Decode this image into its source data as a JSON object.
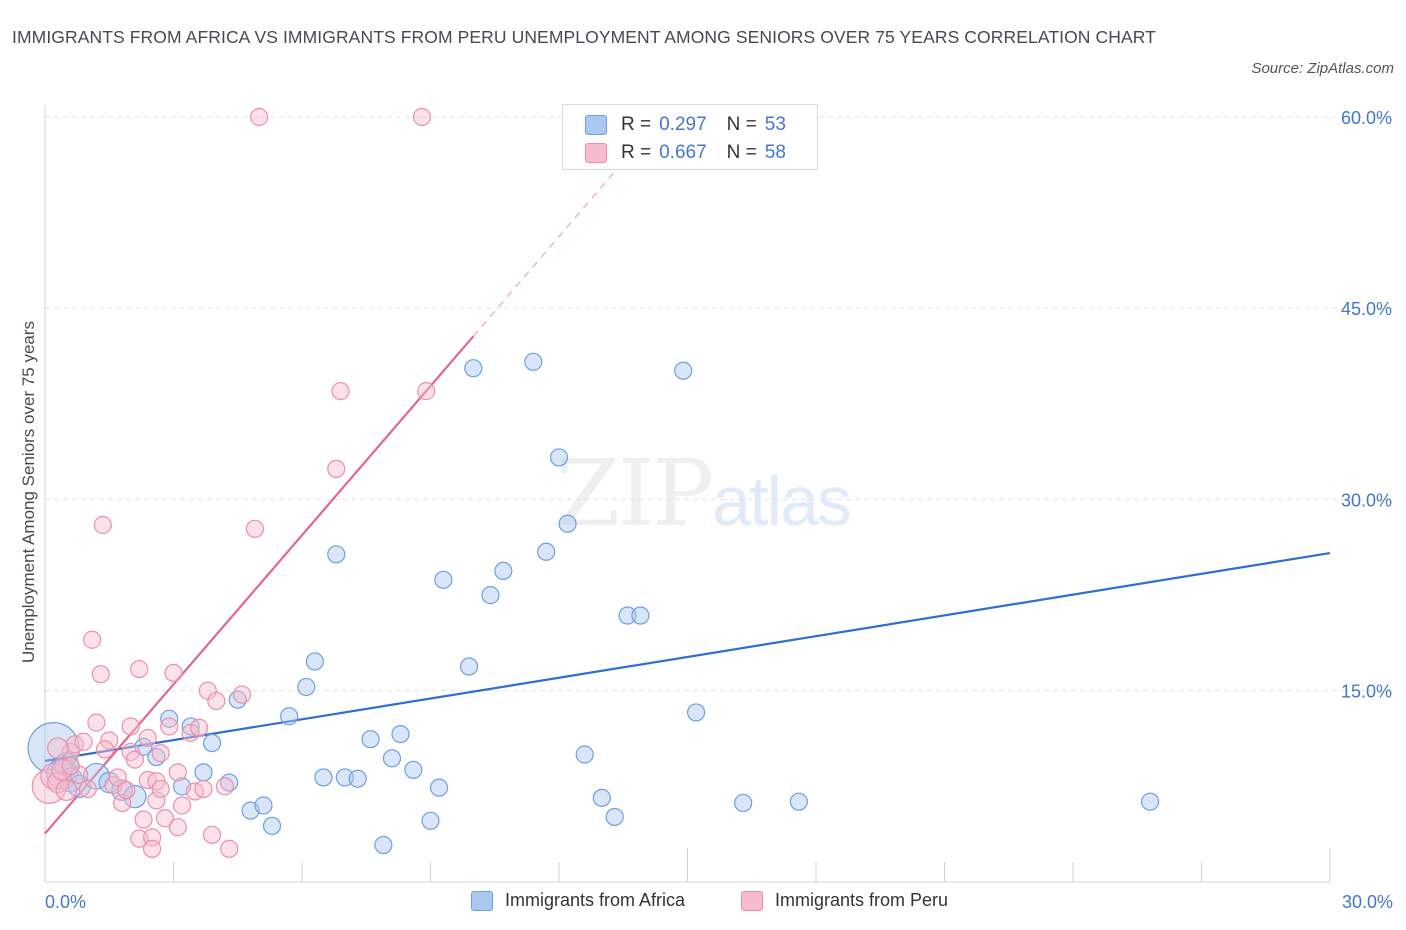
{
  "title": "IMMIGRANTS FROM AFRICA VS IMMIGRANTS FROM PERU UNEMPLOYMENT AMONG SENIORS OVER 75 YEARS CORRELATION CHART",
  "source": "Source: ZipAtlas.com",
  "watermark": {
    "zip": "ZIP",
    "atlas": "atlas"
  },
  "legend": {
    "africa": {
      "r_label": "R =",
      "r_value": "0.297",
      "n_label": "N =",
      "n_value": "53"
    },
    "peru": {
      "r_label": "R =",
      "r_value": "0.667",
      "n_label": "N =",
      "n_value": "58"
    }
  },
  "colors": {
    "africa_fill": "#aac8f0",
    "africa_stroke": "#6e9fe0",
    "africa_line": "#2f6fd0",
    "peru_fill": "#f6bccd",
    "peru_stroke": "#ec8fab",
    "peru_line": "#e2668e",
    "grid": "#e2e4e8",
    "tick_label": "#4477cc"
  },
  "chart_data": {
    "type": "scatter",
    "title": "IMMIGRANTS FROM AFRICA VS IMMIGRANTS FROM PERU UNEMPLOYMENT AMONG SENIORS OVER 75 YEARS CORRELATION CHART",
    "xlabel": "",
    "ylabel": "Unemployment Among Seniors over 75 years",
    "xlim": [
      0,
      30
    ],
    "ylim": [
      0,
      60
    ],
    "x_tick_labels": [
      "0.0%",
      "30.0%"
    ],
    "y_ticks": [
      15,
      30,
      45,
      60
    ],
    "y_tick_labels": [
      "15.0%",
      "30.0%",
      "45.0%",
      "60.0%"
    ],
    "grid": true,
    "legend_position": "bottom",
    "series": [
      {
        "name": "Immigrants from Africa",
        "r": 0.297,
        "n": 53,
        "trend": {
          "x": [
            0,
            30
          ],
          "y": [
            9.5,
            25.8
          ]
        },
        "points": [
          [
            0.2,
            10.5,
            3.0
          ],
          [
            0.4,
            8.5,
            1.8
          ],
          [
            0.5,
            9.2,
            1.4
          ],
          [
            0.6,
            8.0,
            1.4
          ],
          [
            0.8,
            7.5,
            1.3
          ],
          [
            1.2,
            8.3,
            1.5
          ],
          [
            1.5,
            7.8,
            1.2
          ],
          [
            1.8,
            7.2,
            1.2
          ],
          [
            2.1,
            6.7,
            1.3
          ],
          [
            2.3,
            10.6,
            1.0
          ],
          [
            2.6,
            9.8,
            1.0
          ],
          [
            2.9,
            12.8,
            1.0
          ],
          [
            3.2,
            7.5,
            1.0
          ],
          [
            3.4,
            12.2,
            1.0
          ],
          [
            3.7,
            8.6,
            1.0
          ],
          [
            3.9,
            10.9,
            1.0
          ],
          [
            4.3,
            7.8,
            1.0
          ],
          [
            4.5,
            14.3,
            1.0
          ],
          [
            4.8,
            5.6,
            1.0
          ],
          [
            5.1,
            6.0,
            1.0
          ],
          [
            5.3,
            4.4,
            1.0
          ],
          [
            5.7,
            13.0,
            1.0
          ],
          [
            6.1,
            15.3,
            1.0
          ],
          [
            6.3,
            17.3,
            1.0
          ],
          [
            6.5,
            8.2,
            1.0
          ],
          [
            6.8,
            25.7,
            1.0
          ],
          [
            7.0,
            8.2,
            1.0
          ],
          [
            7.3,
            8.1,
            1.0
          ],
          [
            7.6,
            11.2,
            1.0
          ],
          [
            7.9,
            2.9,
            1.0
          ],
          [
            8.1,
            9.7,
            1.0
          ],
          [
            8.3,
            11.6,
            1.0
          ],
          [
            8.6,
            8.8,
            1.0
          ],
          [
            9.0,
            4.8,
            1.0
          ],
          [
            9.2,
            7.4,
            1.0
          ],
          [
            9.3,
            23.7,
            1.0
          ],
          [
            9.9,
            16.9,
            1.0
          ],
          [
            10.0,
            40.3,
            1.0
          ],
          [
            10.4,
            22.5,
            1.0
          ],
          [
            10.7,
            24.4,
            1.0
          ],
          [
            11.4,
            40.8,
            1.0
          ],
          [
            11.7,
            25.9,
            1.0
          ],
          [
            12.0,
            33.3,
            1.0
          ],
          [
            12.2,
            28.1,
            1.0
          ],
          [
            12.6,
            10.0,
            1.0
          ],
          [
            13.0,
            6.6,
            1.0
          ],
          [
            13.3,
            5.1,
            1.0
          ],
          [
            13.6,
            20.9,
            1.0
          ],
          [
            13.9,
            20.9,
            1.0
          ],
          [
            14.9,
            40.1,
            1.0
          ],
          [
            15.2,
            13.3,
            1.0
          ],
          [
            16.3,
            6.2,
            1.0
          ],
          [
            17.6,
            6.3,
            1.0
          ],
          [
            25.8,
            6.3,
            1.0
          ]
        ]
      },
      {
        "name": "Immigrants from Peru",
        "r": 0.667,
        "n": 58,
        "trend": {
          "x": [
            0,
            10
          ],
          "y": [
            3.8,
            42.8
          ]
        },
        "trend_dashed_extension": {
          "x": [
            10,
            13.5
          ],
          "y": [
            42.8,
            56.5
          ]
        },
        "points": [
          [
            0.1,
            7.5,
            2.0
          ],
          [
            0.2,
            8.3,
            1.5
          ],
          [
            0.3,
            7.8,
            1.2
          ],
          [
            0.4,
            8.8,
            1.2
          ],
          [
            0.5,
            7.2,
            1.2
          ],
          [
            0.6,
            10.2,
            1.0
          ],
          [
            0.7,
            10.8,
            1.0
          ],
          [
            0.8,
            8.4,
            1.0
          ],
          [
            0.9,
            11.0,
            1.0
          ],
          [
            1.0,
            7.3,
            1.0
          ],
          [
            1.1,
            19.0,
            1.0
          ],
          [
            1.2,
            12.5,
            1.0
          ],
          [
            1.3,
            16.3,
            1.0
          ],
          [
            1.35,
            28.0,
            1.0
          ],
          [
            1.5,
            11.1,
            1.0
          ],
          [
            1.6,
            7.6,
            1.0
          ],
          [
            1.7,
            8.2,
            1.0
          ],
          [
            1.8,
            6.2,
            1.0
          ],
          [
            1.9,
            7.2,
            1.0
          ],
          [
            2.0,
            10.2,
            1.0
          ],
          [
            2.1,
            9.6,
            1.0
          ],
          [
            2.0,
            12.2,
            1.0
          ],
          [
            2.2,
            3.4,
            1.0
          ],
          [
            2.3,
            4.9,
            1.0
          ],
          [
            2.2,
            16.7,
            1.0
          ],
          [
            2.4,
            8.0,
            1.0
          ],
          [
            2.4,
            11.3,
            1.0
          ],
          [
            2.5,
            3.5,
            1.0
          ],
          [
            2.5,
            2.6,
            1.0
          ],
          [
            2.6,
            7.9,
            1.0
          ],
          [
            2.6,
            6.4,
            1.0
          ],
          [
            2.7,
            7.3,
            1.0
          ],
          [
            2.7,
            10.1,
            1.0
          ],
          [
            2.8,
            5.0,
            1.0
          ],
          [
            2.9,
            12.2,
            1.0
          ],
          [
            3.1,
            4.3,
            1.0
          ],
          [
            3.0,
            16.4,
            1.0
          ],
          [
            3.1,
            8.6,
            1.0
          ],
          [
            3.2,
            6.0,
            1.0
          ],
          [
            3.4,
            11.7,
            1.0
          ],
          [
            3.5,
            7.1,
            1.0
          ],
          [
            3.6,
            12.1,
            1.0
          ],
          [
            3.7,
            7.3,
            1.0
          ],
          [
            3.8,
            15.0,
            1.0
          ],
          [
            3.9,
            3.7,
            1.0
          ],
          [
            4.0,
            14.2,
            1.0
          ],
          [
            4.2,
            7.5,
            1.0
          ],
          [
            4.3,
            2.6,
            1.0
          ],
          [
            4.6,
            14.7,
            1.0
          ],
          [
            4.9,
            27.7,
            1.0
          ],
          [
            5.0,
            60.0,
            1.0
          ],
          [
            6.8,
            32.4,
            1.0
          ],
          [
            6.9,
            38.5,
            1.0
          ],
          [
            8.8,
            60.0,
            1.0
          ],
          [
            8.9,
            38.5,
            1.0
          ],
          [
            0.3,
            10.5,
            1.2
          ],
          [
            0.6,
            9.1,
            1.0
          ],
          [
            1.4,
            10.4,
            1.0
          ]
        ]
      }
    ]
  }
}
